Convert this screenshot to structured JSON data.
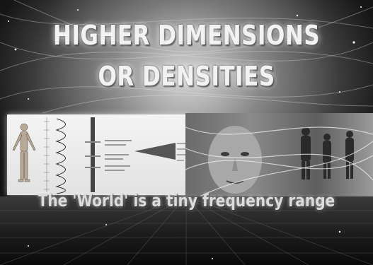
{
  "title": {
    "line1": "HIGHER DIMENSIONS",
    "line2": "OR DENSITIES"
  },
  "caption": "The 'World' is a tiny frequency range"
}
